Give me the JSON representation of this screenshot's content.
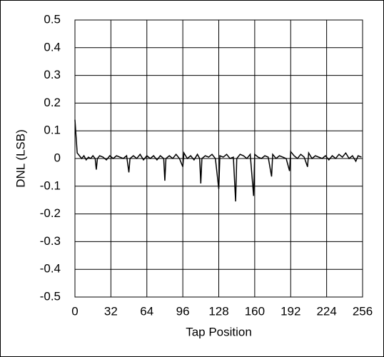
{
  "chart_data": {
    "type": "line",
    "xlabel": "Tap Position",
    "ylabel": "DNL (LSB)",
    "x": [
      0,
      1,
      2,
      4,
      6,
      8,
      10,
      12,
      14,
      16,
      18,
      19,
      20,
      22,
      25,
      28,
      31,
      34,
      37,
      40,
      43,
      46,
      48,
      49,
      52,
      55,
      58,
      61,
      64,
      67,
      70,
      73,
      76,
      79,
      80,
      81,
      84,
      87,
      90,
      93,
      96,
      97,
      100,
      103,
      106,
      109,
      111,
      112,
      113,
      116,
      119,
      122,
      125,
      128,
      129,
      132,
      135,
      138,
      141,
      143,
      144,
      147,
      150,
      153,
      156,
      159,
      160,
      163,
      166,
      169,
      172,
      175,
      176,
      179,
      182,
      185,
      188,
      191,
      192,
      195,
      198,
      201,
      204,
      207,
      208,
      211,
      214,
      217,
      220,
      223,
      226,
      229,
      232,
      235,
      238,
      241,
      244,
      247,
      250,
      252,
      255
    ],
    "values": [
      0.14,
      0.08,
      0.02,
      0.01,
      0.0,
      0.01,
      -0.005,
      0.005,
      0.0,
      0.01,
      0.0,
      -0.04,
      0.0,
      0.01,
      0.005,
      -0.005,
      0.01,
      0.0,
      0.01,
      0.005,
      0.0,
      0.01,
      -0.05,
      0.0,
      0.01,
      0.0,
      0.015,
      -0.005,
      0.01,
      0.0,
      0.01,
      -0.005,
      0.01,
      0.0,
      -0.08,
      0.0,
      0.01,
      0.0,
      0.015,
      0.0,
      -0.03,
      0.02,
      0.0,
      0.01,
      -0.005,
      0.015,
      0.0,
      -0.09,
      0.0,
      0.01,
      0.005,
      0.015,
      0.0,
      -0.11,
      0.01,
      0.005,
      0.015,
      0.0,
      0.005,
      -0.155,
      0.0,
      0.015,
      0.01,
      0.0,
      0.015,
      -0.135,
      0.015,
      0.005,
      0.0,
      0.01,
      0.005,
      -0.065,
      0.015,
      0.0,
      0.01,
      0.005,
      0.0,
      -0.045,
      0.025,
      0.01,
      0.0,
      0.015,
      0.005,
      -0.03,
      0.02,
      0.0,
      0.01,
      0.005,
      0.0,
      0.01,
      -0.005,
      0.01,
      0.0,
      0.015,
      0.005,
      0.02,
      0.0,
      0.01,
      -0.01,
      0.01,
      0.005
    ],
    "color": "#000000",
    "xlim": [
      0,
      256
    ],
    "xticks": [
      0,
      32,
      64,
      96,
      128,
      160,
      192,
      224,
      256
    ],
    "ylim": [
      -0.5,
      0.5
    ],
    "yticks": [
      -0.5,
      -0.4,
      -0.3,
      -0.2,
      -0.1,
      0,
      0.1,
      0.2,
      0.3,
      0.4,
      0.5
    ],
    "grid": true
  }
}
